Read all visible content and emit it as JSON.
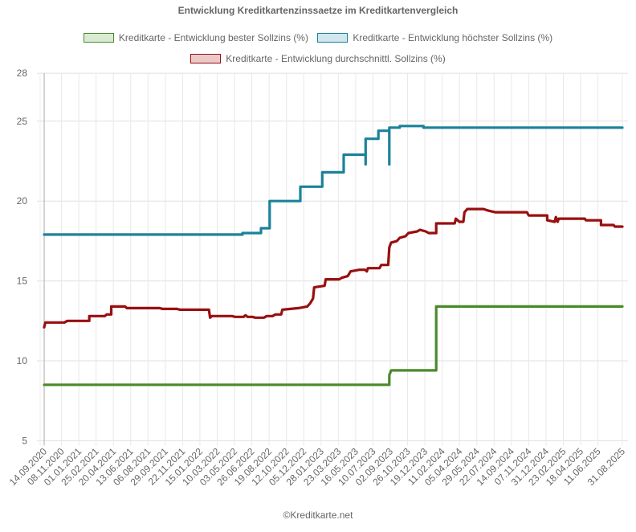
{
  "chart_data": {
    "type": "line",
    "title": "Entwicklung Kreditkartenzinssaetze im Kreditkartenvergleich",
    "xlabel": "",
    "ylabel": "",
    "ylim": [
      5,
      28
    ],
    "yticks": [
      5,
      10,
      15,
      20,
      25,
      28
    ],
    "grid": true,
    "legend_position": "top",
    "categories": [
      "14.09.2020",
      "08.11.2020",
      "01.01.2021",
      "25.02.2021",
      "20.04.2021",
      "13.06.2021",
      "06.08.2021",
      "29.09.2021",
      "22.11.2021",
      "15.01.2022",
      "10.03.2022",
      "03.05.2022",
      "26.06.2022",
      "19.08.2022",
      "12.10.2022",
      "05.12.2022",
      "28.01.2023",
      "23.03.2023",
      "16.05.2023",
      "10.07.2023",
      "02.09.2023",
      "26.10.2023",
      "19.12.2023",
      "11.02.2024",
      "05.04.2024",
      "29.05.2024",
      "22.07.2024",
      "14.09.2024",
      "07.11.2024",
      "31.12.2024",
      "23.02.2025",
      "18.04.2025",
      "11.06.2025",
      "31.08.2025"
    ],
    "series": [
      {
        "name": "Kreditkarte - Entwicklung bester Sollzins  (%)",
        "color": "#4a8a2a",
        "fill": "#d9ead3",
        "points": [
          [
            0,
            8.5
          ],
          [
            0.597,
            8.5
          ],
          [
            0.597,
            9.1
          ],
          [
            0.6,
            9.4
          ],
          [
            0.678,
            9.4
          ],
          [
            0.678,
            13.4
          ],
          [
            1,
            13.4
          ]
        ]
      },
      {
        "name": "Kreditkarte - Entwicklung höchster Sollzins (%)",
        "color": "#1b8299",
        "fill": "#d0e7ee",
        "points": [
          [
            0,
            17.9
          ],
          [
            0.343,
            17.9
          ],
          [
            0.343,
            18.0
          ],
          [
            0.375,
            18.0
          ],
          [
            0.375,
            18.3
          ],
          [
            0.39,
            18.3
          ],
          [
            0.39,
            20.0
          ],
          [
            0.443,
            20.0
          ],
          [
            0.443,
            20.9
          ],
          [
            0.481,
            20.9
          ],
          [
            0.481,
            21.8
          ],
          [
            0.518,
            21.8
          ],
          [
            0.518,
            22.9
          ],
          [
            0.556,
            22.9
          ],
          [
            0.556,
            22.3
          ],
          [
            0.556,
            23.9
          ],
          [
            0.578,
            23.9
          ],
          [
            0.578,
            24.4
          ],
          [
            0.597,
            24.4
          ],
          [
            0.597,
            22.3
          ],
          [
            0.597,
            24.6
          ],
          [
            0.615,
            24.6
          ],
          [
            0.615,
            24.7
          ],
          [
            0.656,
            24.7
          ],
          [
            0.656,
            24.6
          ],
          [
            1,
            24.6
          ]
        ]
      },
      {
        "name": "Kreditkarte - Entwicklung durchschnittl. Sollzins (%)",
        "color": "#990f0f",
        "fill": "#ecc9c9",
        "points": [
          [
            0,
            12.1
          ],
          [
            0.002,
            12.4
          ],
          [
            0.035,
            12.4
          ],
          [
            0.04,
            12.5
          ],
          [
            0.078,
            12.5
          ],
          [
            0.078,
            12.8
          ],
          [
            0.105,
            12.8
          ],
          [
            0.108,
            12.9
          ],
          [
            0.116,
            12.9
          ],
          [
            0.116,
            13.4
          ],
          [
            0.14,
            13.4
          ],
          [
            0.143,
            13.3
          ],
          [
            0.2,
            13.3
          ],
          [
            0.205,
            13.25
          ],
          [
            0.23,
            13.25
          ],
          [
            0.235,
            13.2
          ],
          [
            0.285,
            13.2
          ],
          [
            0.287,
            12.7
          ],
          [
            0.29,
            12.8
          ],
          [
            0.325,
            12.8
          ],
          [
            0.33,
            12.75
          ],
          [
            0.345,
            12.75
          ],
          [
            0.348,
            12.85
          ],
          [
            0.352,
            12.75
          ],
          [
            0.36,
            12.75
          ],
          [
            0.365,
            12.7
          ],
          [
            0.38,
            12.7
          ],
          [
            0.385,
            12.8
          ],
          [
            0.395,
            12.8
          ],
          [
            0.4,
            12.9
          ],
          [
            0.41,
            12.9
          ],
          [
            0.412,
            13.2
          ],
          [
            0.44,
            13.3
          ],
          [
            0.455,
            13.4
          ],
          [
            0.46,
            13.6
          ],
          [
            0.465,
            13.9
          ],
          [
            0.467,
            14.6
          ],
          [
            0.485,
            14.7
          ],
          [
            0.487,
            15.1
          ],
          [
            0.51,
            15.1
          ],
          [
            0.515,
            15.2
          ],
          [
            0.525,
            15.3
          ],
          [
            0.53,
            15.6
          ],
          [
            0.545,
            15.7
          ],
          [
            0.555,
            15.7
          ],
          [
            0.558,
            15.6
          ],
          [
            0.56,
            15.8
          ],
          [
            0.58,
            15.8
          ],
          [
            0.583,
            16.0
          ],
          [
            0.595,
            16.0
          ],
          [
            0.597,
            17.1
          ],
          [
            0.6,
            17.4
          ],
          [
            0.61,
            17.5
          ],
          [
            0.615,
            17.7
          ],
          [
            0.625,
            17.8
          ],
          [
            0.63,
            18.0
          ],
          [
            0.645,
            18.1
          ],
          [
            0.65,
            18.2
          ],
          [
            0.66,
            18.1
          ],
          [
            0.665,
            18.0
          ],
          [
            0.678,
            18.0
          ],
          [
            0.678,
            18.6
          ],
          [
            0.71,
            18.6
          ],
          [
            0.712,
            18.9
          ],
          [
            0.718,
            18.7
          ],
          [
            0.725,
            18.7
          ],
          [
            0.727,
            19.3
          ],
          [
            0.732,
            19.5
          ],
          [
            0.76,
            19.5
          ],
          [
            0.768,
            19.4
          ],
          [
            0.78,
            19.3
          ],
          [
            0.835,
            19.3
          ],
          [
            0.838,
            19.1
          ],
          [
            0.87,
            19.1
          ],
          [
            0.87,
            18.8
          ],
          [
            0.883,
            18.7
          ],
          [
            0.885,
            19.0
          ],
          [
            0.888,
            18.7
          ],
          [
            0.89,
            18.9
          ],
          [
            0.935,
            18.9
          ],
          [
            0.937,
            18.8
          ],
          [
            0.963,
            18.8
          ],
          [
            0.963,
            18.5
          ],
          [
            0.985,
            18.5
          ],
          [
            0.987,
            18.4
          ],
          [
            1,
            18.4
          ]
        ]
      }
    ]
  },
  "footer": "©Kreditkarte.net"
}
